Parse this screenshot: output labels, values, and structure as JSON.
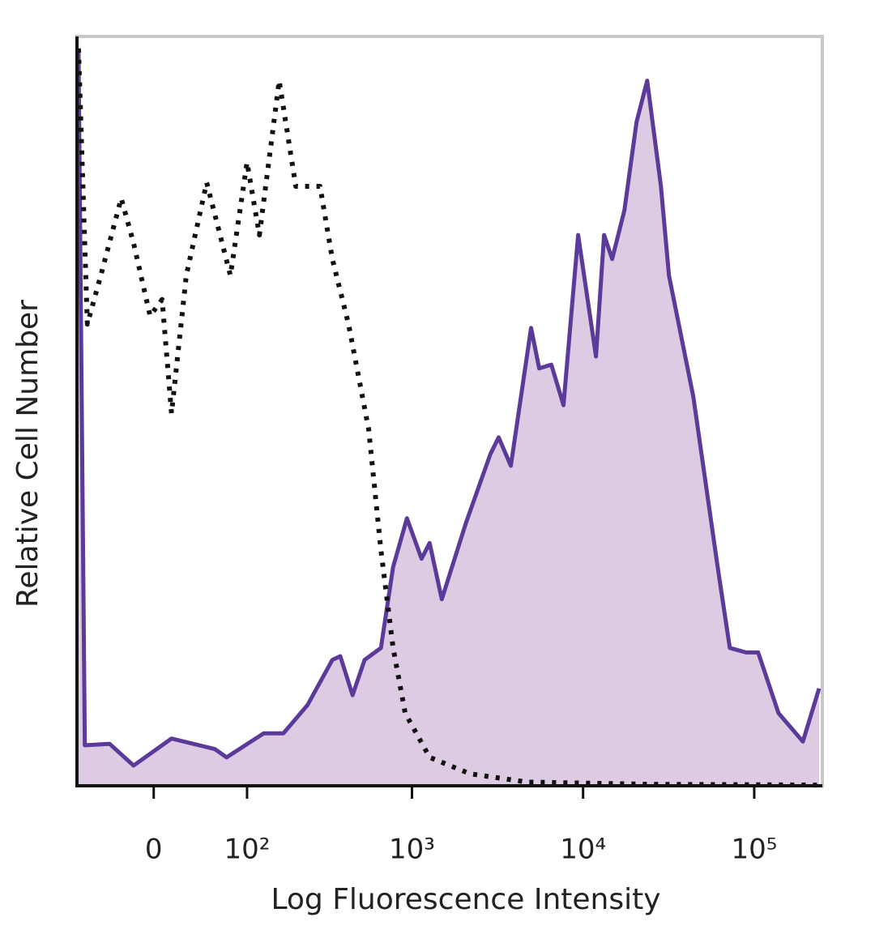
{
  "chart_data": {
    "type": "histogram-overlay",
    "x_label": "Log Fluorescence Intensity",
    "y_label": "Relative Cell Number",
    "xscale": "asinh",
    "xlim": [
      -76,
      250000
    ],
    "xticks": [
      0,
      {
        "value": 100,
        "label": "10²"
      },
      {
        "value": 1000,
        "label": "10³"
      },
      {
        "value": 10000,
        "label": "10⁴"
      },
      {
        "value": 100000,
        "label": "10⁵"
      }
    ],
    "ylim": [
      0,
      100
    ],
    "series": [
      {
        "color": "#5b3a9a",
        "fill": "#dccbe3",
        "x": [
          -74,
          -66,
          -39,
          -17,
          15,
          57,
          71,
          129,
          172,
          242,
          340,
          379,
          448,
          527,
          658,
          775,
          934,
          1137,
          1269,
          1494,
          2071,
          2877,
          3212,
          3782,
          4966,
          5543,
          6522,
          7682,
          9356,
          11900,
          13270,
          14800,
          17440,
          20530,
          23680,
          28520,
          31760,
          44080,
          61140,
          72030,
          89600,
          105500,
          138600,
          192400,
          239300
        ],
        "values": [
          98.4,
          5.4,
          5.6,
          2.7,
          6.3,
          4.9,
          3.8,
          7.0,
          7.0,
          10.8,
          16.8,
          17.3,
          12.1,
          16.8,
          18.4,
          29.2,
          35.7,
          30.3,
          32.4,
          24.9,
          35.1,
          44.3,
          46.5,
          42.7,
          61.1,
          55.7,
          56.2,
          50.8,
          73.5,
          57.3,
          73.5,
          70.3,
          76.8,
          88.6,
          94.1,
          80.0,
          68.1,
          51.9,
          29.2,
          18.4,
          17.8,
          17.8,
          9.7,
          5.9,
          13.0
        ]
      },
      {
        "color": "#111111",
        "line_style": "dotted",
        "x": [
          -74,
          -63,
          -48,
          -28,
          -17,
          -3,
          7,
          15,
          28,
          48,
          76,
          100,
          121,
          162,
          205,
          287,
          340,
          424,
          557,
          658,
          775,
          912,
          1269,
          2189,
          4706,
          24180,
          239300
        ],
        "values": [
          98.4,
          61.6,
          68.1,
          78.4,
          72.4,
          62.7,
          64.9,
          49.7,
          68.1,
          80.5,
          68.1,
          83.2,
          73.5,
          94.1,
          80.0,
          80.0,
          70.3,
          61.6,
          47.6,
          31.4,
          18.4,
          9.7,
          3.8,
          1.6,
          0.5,
          0.2,
          0.1
        ]
      }
    ]
  }
}
